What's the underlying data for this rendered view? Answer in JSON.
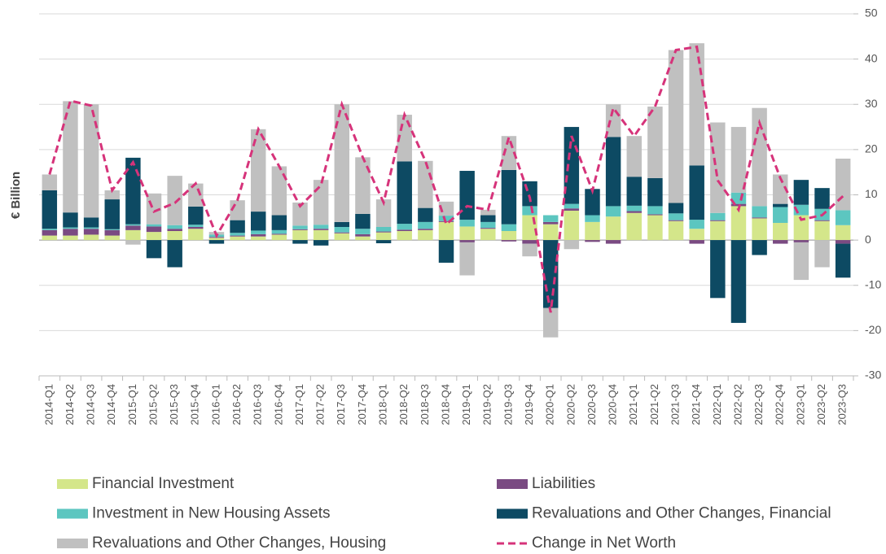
{
  "chart_data": {
    "type": "stacked_bar_line",
    "y_label": "€ Billion",
    "categories": [
      "2014-Q1",
      "2014-Q2",
      "2014-Q3",
      "2014-Q4",
      "2015-Q1",
      "2015-Q2",
      "2015-Q3",
      "2015-Q4",
      "2016-Q1",
      "2016-Q2",
      "2016-Q3",
      "2016-Q4",
      "2017-Q1",
      "2017-Q2",
      "2017-Q3",
      "2017-Q4",
      "2018-Q1",
      "2018-Q2",
      "2018-Q3",
      "2018-Q4",
      "2019-Q1",
      "2019-Q2",
      "2019-Q3",
      "2019-Q4",
      "2020-Q1",
      "2020-Q2",
      "2020-Q3",
      "2020-Q4",
      "2021-Q1",
      "2021-Q2",
      "2021-Q3",
      "2021-Q4",
      "2022-Q1",
      "2022-Q2",
      "2022-Q3",
      "2022-Q4",
      "2023-Q1",
      "2023-Q2",
      "2023-Q3"
    ],
    "series": [
      {
        "name": "Financial Investment",
        "color": "#d4e68a",
        "kind": "bar",
        "values": [
          1,
          1,
          1.2,
          1,
          2.2,
          1.8,
          2,
          2.5,
          0.5,
          0.8,
          0.8,
          1.2,
          2.2,
          2.2,
          1.5,
          0.8,
          1.7,
          2,
          2.2,
          4,
          3,
          2.5,
          2,
          5.5,
          3.5,
          6.5,
          4,
          5.2,
          6,
          5.5,
          4.2,
          2.5,
          4.2,
          7.5,
          4.8,
          3.8,
          5.5,
          4.2,
          3.3
        ]
      },
      {
        "name": "Liabilities",
        "color": "#7a4a82",
        "kind": "bar",
        "values": [
          1.2,
          1.5,
          1.3,
          1.2,
          1,
          1.2,
          0.5,
          0.4,
          0.2,
          0.2,
          0.5,
          0.2,
          0.2,
          0.3,
          0.2,
          0.5,
          0.2,
          0.3,
          0.3,
          0.2,
          -0.5,
          0.2,
          -0.3,
          -0.8,
          0.5,
          0.5,
          -0.4,
          -0.8,
          0.4,
          0.2,
          0.2,
          -0.8,
          0.2,
          0.5,
          0.2,
          -0.8,
          -0.5,
          0.2,
          -0.8
        ]
      },
      {
        "name": "Investment in New Housing Assets",
        "color": "#5cc6c0",
        "kind": "bar",
        "values": [
          0.3,
          0.3,
          0.3,
          0.2,
          0.3,
          0.5,
          0.8,
          0.5,
          0.5,
          0.6,
          0.8,
          0.8,
          0.8,
          0.9,
          1.2,
          1.2,
          1,
          1.3,
          1.5,
          1.2,
          1.5,
          1.3,
          1.5,
          2,
          1.5,
          1,
          1.5,
          2.3,
          1.2,
          1.8,
          1.5,
          2,
          1.6,
          2.5,
          2.5,
          3.5,
          2.3,
          2.5,
          3.3
        ]
      },
      {
        "name": "Revaluations and Other Changes, Financial",
        "color": "#0d4a63",
        "kind": "bar",
        "values": [
          8.5,
          3.3,
          2.2,
          6.6,
          14.7,
          -4,
          -6,
          4,
          -0.8,
          2.8,
          4.2,
          3.3,
          -0.8,
          -1.2,
          1.1,
          3.3,
          -0.7,
          13.8,
          3.1,
          -5,
          10.8,
          1.5,
          12,
          5.5,
          -15,
          17,
          5.8,
          15.3,
          6.4,
          6.2,
          2.3,
          12,
          -12.8,
          -18.3,
          -3.3,
          0.7,
          5.5,
          4.6,
          -7.5
        ]
      },
      {
        "name": "Revaluations and Other Changes, Housing",
        "color": "#c0c0c0",
        "kind": "bar",
        "values": [
          3.5,
          24.6,
          25,
          2,
          -1,
          6.8,
          10.9,
          5.1,
          0.6,
          4.4,
          18.2,
          10.8,
          5.1,
          9.9,
          26,
          12.5,
          6.1,
          10.3,
          10.4,
          3.1,
          -7.3,
          1.2,
          7.5,
          -2.8,
          -6.5,
          -2,
          0,
          7.2,
          9,
          15.8,
          33.8,
          27,
          20,
          14.5,
          21.7,
          6.5,
          -8.3,
          -6,
          11.4
        ]
      },
      {
        "name": "Change in Net Worth",
        "color": "#d6337a",
        "kind": "line",
        "values": [
          14.5,
          30.8,
          29.7,
          11,
          17.2,
          6.3,
          8.2,
          12.5,
          1,
          8.8,
          24.5,
          16.3,
          7.5,
          12.1,
          30,
          18.3,
          8.3,
          27.7,
          17.5,
          3.5,
          7.5,
          6.7,
          22.7,
          9.4,
          -16,
          23,
          10.9,
          29.2,
          23,
          29.5,
          42,
          42.7,
          13.2,
          6.7,
          25.9,
          13.7,
          4.5,
          5.5,
          9.7
        ]
      }
    ],
    "ylim": [
      -30,
      50
    ],
    "yticks": [
      -30,
      -20,
      -10,
      0,
      10,
      20,
      30,
      40,
      50
    ],
    "grid": true,
    "legend": "bottom"
  }
}
